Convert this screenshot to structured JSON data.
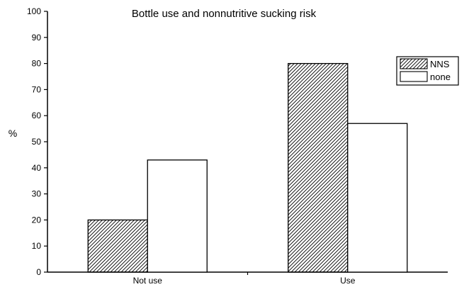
{
  "chart_data": {
    "type": "bar",
    "title": "Bottle use and nonnutritive sucking risk",
    "xlabel": "",
    "ylabel": "%",
    "categories": [
      "Not use",
      "Use"
    ],
    "series": [
      {
        "name": "NNS",
        "values": [
          20,
          80
        ],
        "fill": "hatched"
      },
      {
        "name": "none",
        "values": [
          43,
          57
        ],
        "fill": "white"
      }
    ],
    "ylim": [
      0,
      100
    ],
    "yticks": [
      0,
      10,
      20,
      30,
      40,
      50,
      60,
      70,
      80,
      90,
      100
    ],
    "grid": false,
    "legend_position": "right",
    "colors": {
      "axis": "#000000",
      "bar_stroke": "#000000",
      "hatch": "#000000",
      "plain_fill": "#ffffff"
    }
  }
}
